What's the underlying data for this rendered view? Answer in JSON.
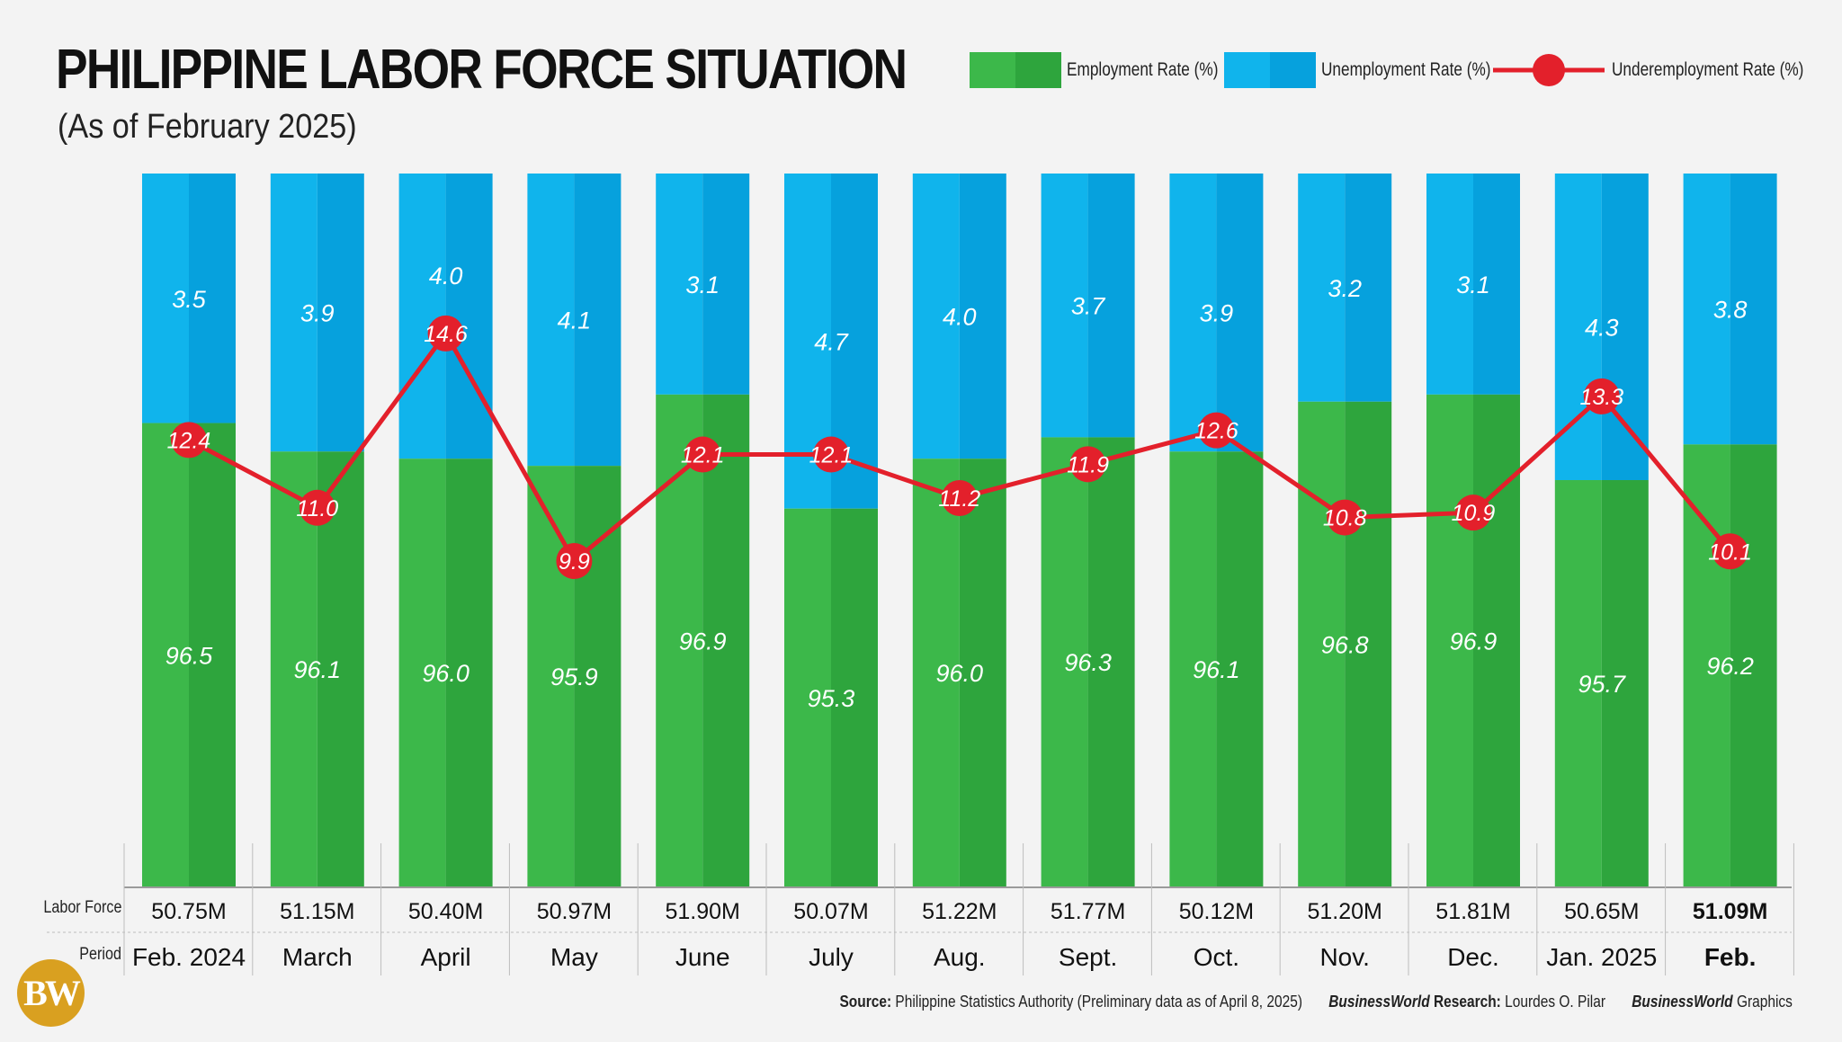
{
  "header": {
    "title": "PHILIPPINE LABOR FORCE SITUATION",
    "subtitle": "(As of February 2025)"
  },
  "legend": {
    "employment": "Employment  Rate (%)",
    "unemployment": "Unemployment Rate (%)",
    "underemployment": "Underemployment Rate (%)"
  },
  "colors": {
    "employment_light": "#3cb84a",
    "employment_dark": "#2ea53d",
    "unemployment_light": "#10b4ec",
    "unemployment_dark": "#06a1dd",
    "underemployment": "#e3202b",
    "grid": "#bdbdbd"
  },
  "row_labels": {
    "labor_force": "Labor Force",
    "period": "Period"
  },
  "chart_data": {
    "type": "bar",
    "stacked": true,
    "categories": [
      "Feb. 2024",
      "March",
      "April",
      "May",
      "June",
      "July",
      "Aug.",
      "Sept.",
      "Oct.",
      "Nov.",
      "Dec.",
      "Jan. 2025",
      "Feb."
    ],
    "series": [
      {
        "name": "Employment  Rate (%)",
        "type": "bar",
        "values": [
          96.5,
          96.1,
          96.0,
          95.9,
          96.9,
          95.3,
          96.0,
          96.3,
          96.1,
          96.8,
          96.9,
          95.7,
          96.2
        ]
      },
      {
        "name": "Unemployment Rate (%)",
        "type": "bar",
        "values": [
          3.5,
          3.9,
          4.0,
          4.1,
          3.1,
          4.7,
          4.0,
          3.7,
          3.9,
          3.2,
          3.1,
          4.3,
          3.8
        ]
      },
      {
        "name": "Underemployment Rate (%)",
        "type": "line",
        "values": [
          12.4,
          11.0,
          14.6,
          9.9,
          12.1,
          12.1,
          11.2,
          11.9,
          12.6,
          10.8,
          10.9,
          13.3,
          10.1
        ]
      }
    ],
    "labor_force": [
      "50.75M",
      "51.15M",
      "50.40M",
      "50.97M",
      "51.90M",
      "50.07M",
      "51.22M",
      "51.77M",
      "50.12M",
      "51.20M",
      "51.81M",
      "50.65M",
      "51.09M"
    ]
  },
  "footer": {
    "source_label": "Source:",
    "source_text": "Philippine Statistics Authority (Preliminary data as of April 8, 2025)",
    "research_brand": "BusinessWorld",
    "research_label": "Research:",
    "research_name": "Lourdes O. Pilar",
    "graphics_brand": "BusinessWorld",
    "graphics_label": "Graphics"
  },
  "logo": {
    "text": "BW"
  }
}
